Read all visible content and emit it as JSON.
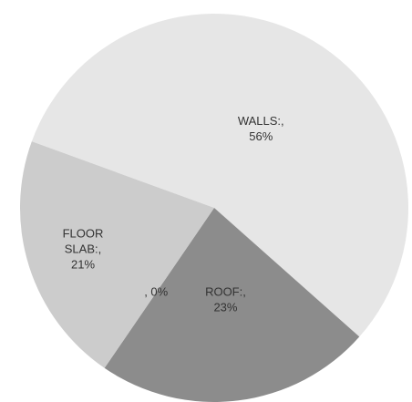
{
  "chart_data": {
    "type": "pie",
    "values": [
      56,
      23,
      0,
      21
    ],
    "value_labels": [
      [
        "WALLS:,",
        "56%"
      ],
      [
        "ROOF:,",
        "23%"
      ],
      [
        ", 0%"
      ],
      [
        "FLOOR",
        "SLAB:,",
        "21%"
      ]
    ],
    "colors": [
      "#e6e6e6",
      "#8c8c8c",
      "#b0b0b0",
      "#cccccc"
    ]
  }
}
